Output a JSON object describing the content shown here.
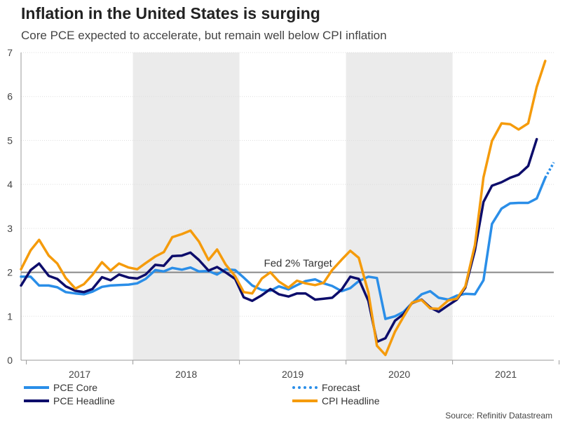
{
  "header": {
    "title": "Inflation in the United States is surging",
    "subtitle": "Core PCE expected to accelerate, but remain well below CPI inflation"
  },
  "source": "Source: Refinitiv Datastream",
  "colors": {
    "pce_core": "#2a8ee8",
    "pce_headline": "#0d0d6b",
    "cpi_headline": "#f59b0b",
    "shading": "#ebebeb",
    "target_line": "#888888",
    "axis": "#999999"
  },
  "chart_data": {
    "type": "line",
    "title": "Inflation in the United States is surging",
    "subtitle": "Core PCE expected to accelerate, but remain well below CPI inflation",
    "xlabel": "",
    "ylabel": "",
    "ylim": [
      0,
      7
    ],
    "yticks": [
      0,
      1,
      2,
      3,
      4,
      5,
      6,
      7
    ],
    "xlim": [
      2016.95,
      2021.95
    ],
    "year_labels": [
      "2017",
      "2018",
      "2019",
      "2020",
      "2021"
    ],
    "shaded_years": [
      "2018",
      "2020"
    ],
    "reference_line": {
      "value": 2,
      "label": "Fed 2% Target"
    },
    "series": [
      {
        "name": "PCE Core",
        "style": "solid",
        "points": [
          [
            2016.95,
            1.9
          ],
          [
            2017.04,
            1.9
          ],
          [
            2017.12,
            1.7
          ],
          [
            2017.21,
            1.7
          ],
          [
            2017.29,
            1.66
          ],
          [
            2017.37,
            1.55
          ],
          [
            2017.46,
            1.52
          ],
          [
            2017.54,
            1.5
          ],
          [
            2017.62,
            1.56
          ],
          [
            2017.71,
            1.67
          ],
          [
            2017.79,
            1.7
          ],
          [
            2017.87,
            1.71
          ],
          [
            2017.96,
            1.72
          ],
          [
            2018.04,
            1.75
          ],
          [
            2018.12,
            1.85
          ],
          [
            2018.21,
            2.05
          ],
          [
            2018.29,
            2.02
          ],
          [
            2018.37,
            2.1
          ],
          [
            2018.46,
            2.06
          ],
          [
            2018.54,
            2.11
          ],
          [
            2018.62,
            2.02
          ],
          [
            2018.71,
            2.03
          ],
          [
            2018.79,
            1.95
          ],
          [
            2018.87,
            2.07
          ],
          [
            2018.96,
            2.05
          ],
          [
            2019.04,
            1.88
          ],
          [
            2019.12,
            1.7
          ],
          [
            2019.21,
            1.6
          ],
          [
            2019.29,
            1.58
          ],
          [
            2019.37,
            1.68
          ],
          [
            2019.46,
            1.61
          ],
          [
            2019.54,
            1.71
          ],
          [
            2019.62,
            1.8
          ],
          [
            2019.71,
            1.84
          ],
          [
            2019.79,
            1.75
          ],
          [
            2019.87,
            1.69
          ],
          [
            2019.96,
            1.57
          ],
          [
            2020.04,
            1.64
          ],
          [
            2020.12,
            1.8
          ],
          [
            2020.21,
            1.9
          ],
          [
            2020.29,
            1.87
          ],
          [
            2020.37,
            0.94
          ],
          [
            2020.46,
            1.0
          ],
          [
            2020.54,
            1.1
          ],
          [
            2020.62,
            1.3
          ],
          [
            2020.71,
            1.5
          ],
          [
            2020.79,
            1.57
          ],
          [
            2020.87,
            1.42
          ],
          [
            2020.96,
            1.38
          ],
          [
            2021.04,
            1.47
          ],
          [
            2021.12,
            1.51
          ],
          [
            2021.21,
            1.5
          ],
          [
            2021.29,
            1.82
          ],
          [
            2021.37,
            3.1
          ],
          [
            2021.46,
            3.45
          ],
          [
            2021.54,
            3.57
          ],
          [
            2021.62,
            3.58
          ],
          [
            2021.71,
            3.58
          ],
          [
            2021.79,
            3.68
          ],
          [
            2021.87,
            4.15
          ]
        ]
      },
      {
        "name": "Forecast",
        "style": "dotted",
        "points": [
          [
            2021.87,
            4.15
          ],
          [
            2021.95,
            4.5
          ]
        ]
      },
      {
        "name": "PCE Headline",
        "style": "solid",
        "points": [
          [
            2016.95,
            1.7
          ],
          [
            2017.04,
            2.05
          ],
          [
            2017.12,
            2.2
          ],
          [
            2017.21,
            1.92
          ],
          [
            2017.29,
            1.85
          ],
          [
            2017.37,
            1.68
          ],
          [
            2017.46,
            1.58
          ],
          [
            2017.54,
            1.55
          ],
          [
            2017.62,
            1.62
          ],
          [
            2017.71,
            1.89
          ],
          [
            2017.79,
            1.82
          ],
          [
            2017.87,
            1.95
          ],
          [
            2017.96,
            1.88
          ],
          [
            2018.04,
            1.86
          ],
          [
            2018.12,
            1.95
          ],
          [
            2018.21,
            2.17
          ],
          [
            2018.29,
            2.15
          ],
          [
            2018.37,
            2.37
          ],
          [
            2018.46,
            2.38
          ],
          [
            2018.54,
            2.45
          ],
          [
            2018.62,
            2.28
          ],
          [
            2018.71,
            2.04
          ],
          [
            2018.79,
            2.12
          ],
          [
            2018.87,
            2.0
          ],
          [
            2018.96,
            1.85
          ],
          [
            2019.04,
            1.43
          ],
          [
            2019.12,
            1.35
          ],
          [
            2019.21,
            1.48
          ],
          [
            2019.29,
            1.62
          ],
          [
            2019.37,
            1.5
          ],
          [
            2019.46,
            1.45
          ],
          [
            2019.54,
            1.52
          ],
          [
            2019.62,
            1.52
          ],
          [
            2019.71,
            1.38
          ],
          [
            2019.79,
            1.4
          ],
          [
            2019.87,
            1.42
          ],
          [
            2019.96,
            1.61
          ],
          [
            2020.04,
            1.9
          ],
          [
            2020.12,
            1.85
          ],
          [
            2020.21,
            1.35
          ],
          [
            2020.29,
            0.42
          ],
          [
            2020.37,
            0.5
          ],
          [
            2020.46,
            0.9
          ],
          [
            2020.54,
            1.05
          ],
          [
            2020.62,
            1.3
          ],
          [
            2020.71,
            1.38
          ],
          [
            2020.79,
            1.2
          ],
          [
            2020.87,
            1.1
          ],
          [
            2020.96,
            1.25
          ],
          [
            2021.04,
            1.38
          ],
          [
            2021.12,
            1.65
          ],
          [
            2021.21,
            2.5
          ],
          [
            2021.29,
            3.6
          ],
          [
            2021.37,
            3.97
          ],
          [
            2021.46,
            4.05
          ],
          [
            2021.54,
            4.15
          ],
          [
            2021.62,
            4.22
          ],
          [
            2021.71,
            4.42
          ],
          [
            2021.79,
            5.03
          ]
        ]
      },
      {
        "name": "CPI Headline",
        "style": "solid",
        "points": [
          [
            2016.95,
            2.07
          ],
          [
            2017.04,
            2.5
          ],
          [
            2017.12,
            2.74
          ],
          [
            2017.21,
            2.38
          ],
          [
            2017.29,
            2.2
          ],
          [
            2017.37,
            1.87
          ],
          [
            2017.46,
            1.63
          ],
          [
            2017.54,
            1.73
          ],
          [
            2017.62,
            1.94
          ],
          [
            2017.71,
            2.23
          ],
          [
            2017.79,
            2.04
          ],
          [
            2017.87,
            2.2
          ],
          [
            2017.96,
            2.11
          ],
          [
            2018.04,
            2.07
          ],
          [
            2018.12,
            2.21
          ],
          [
            2018.21,
            2.36
          ],
          [
            2018.29,
            2.46
          ],
          [
            2018.37,
            2.8
          ],
          [
            2018.46,
            2.87
          ],
          [
            2018.54,
            2.95
          ],
          [
            2018.62,
            2.7
          ],
          [
            2018.71,
            2.28
          ],
          [
            2018.79,
            2.52
          ],
          [
            2018.87,
            2.18
          ],
          [
            2018.96,
            1.91
          ],
          [
            2019.04,
            1.55
          ],
          [
            2019.12,
            1.52
          ],
          [
            2019.21,
            1.86
          ],
          [
            2019.29,
            2.0
          ],
          [
            2019.37,
            1.79
          ],
          [
            2019.46,
            1.65
          ],
          [
            2019.54,
            1.81
          ],
          [
            2019.62,
            1.75
          ],
          [
            2019.71,
            1.71
          ],
          [
            2019.79,
            1.76
          ],
          [
            2019.87,
            2.05
          ],
          [
            2019.96,
            2.29
          ],
          [
            2020.04,
            2.49
          ],
          [
            2020.12,
            2.33
          ],
          [
            2020.21,
            1.54
          ],
          [
            2020.29,
            0.33
          ],
          [
            2020.37,
            0.12
          ],
          [
            2020.46,
            0.65
          ],
          [
            2020.54,
            0.99
          ],
          [
            2020.62,
            1.31
          ],
          [
            2020.71,
            1.37
          ],
          [
            2020.79,
            1.18
          ],
          [
            2020.87,
            1.17
          ],
          [
            2020.96,
            1.36
          ],
          [
            2021.04,
            1.4
          ],
          [
            2021.12,
            1.68
          ],
          [
            2021.21,
            2.62
          ],
          [
            2021.29,
            4.16
          ],
          [
            2021.37,
            4.99
          ],
          [
            2021.46,
            5.39
          ],
          [
            2021.54,
            5.37
          ],
          [
            2021.62,
            5.25
          ],
          [
            2021.71,
            5.39
          ],
          [
            2021.79,
            6.22
          ],
          [
            2021.87,
            6.81
          ]
        ]
      }
    ]
  },
  "legend": [
    {
      "label": "PCE Core",
      "series": "pce_core",
      "style": "solid"
    },
    {
      "label": "Forecast",
      "series": "pce_core",
      "style": "dotted"
    },
    {
      "label": "PCE Headline",
      "series": "pce_headline",
      "style": "solid"
    },
    {
      "label": "CPI Headline",
      "series": "cpi_headline",
      "style": "solid"
    }
  ]
}
